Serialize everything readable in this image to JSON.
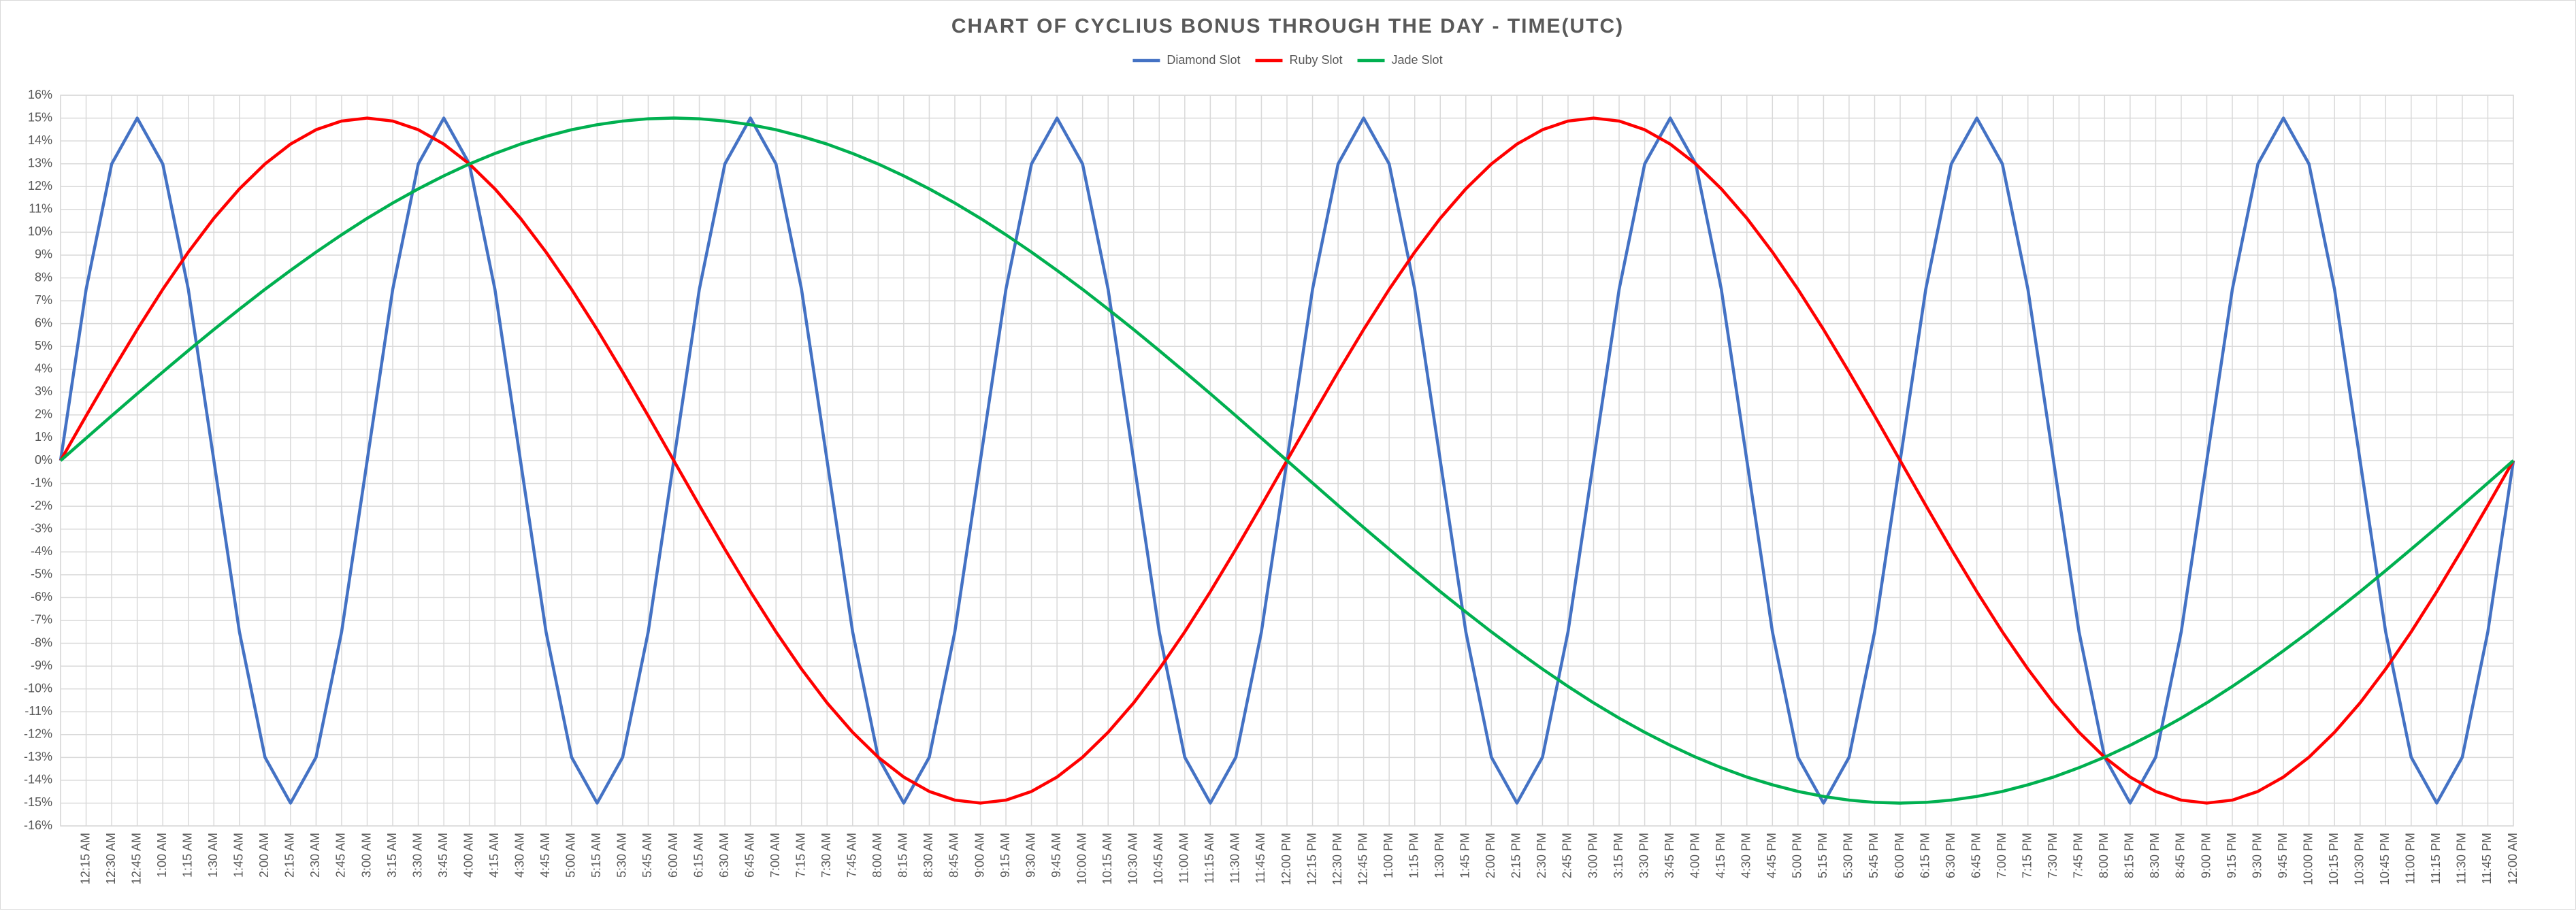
{
  "chart_data": {
    "type": "line",
    "title": "CHART OF CYCLIUS BONUS THROUGH THE DAY - TIME(UTC)",
    "legend": "top",
    "grid": true,
    "ylim": [
      -16,
      16
    ],
    "yticks": [
      {
        "value": -16,
        "label": "-16%"
      },
      {
        "value": -15,
        "label": "-15%"
      },
      {
        "value": -14,
        "label": "-14%"
      },
      {
        "value": -13,
        "label": "-13%"
      },
      {
        "value": -12,
        "label": "-12%"
      },
      {
        "value": -11,
        "label": "-11%"
      },
      {
        "value": -10,
        "label": "-10%"
      },
      {
        "value": -9,
        "label": "-9%"
      },
      {
        "value": -8,
        "label": "-8%"
      },
      {
        "value": -7,
        "label": "-7%"
      },
      {
        "value": -6,
        "label": "-6%"
      },
      {
        "value": -5,
        "label": "-5%"
      },
      {
        "value": -4,
        "label": "-4%"
      },
      {
        "value": -3,
        "label": "-3%"
      },
      {
        "value": -2,
        "label": "-2%"
      },
      {
        "value": -1,
        "label": "-1%"
      },
      {
        "value": 0,
        "label": "0%"
      },
      {
        "value": 1,
        "label": "1%"
      },
      {
        "value": 2,
        "label": "2%"
      },
      {
        "value": 3,
        "label": "3%"
      },
      {
        "value": 4,
        "label": "4%"
      },
      {
        "value": 5,
        "label": "5%"
      },
      {
        "value": 6,
        "label": "6%"
      },
      {
        "value": 7,
        "label": "7%"
      },
      {
        "value": 8,
        "label": "8%"
      },
      {
        "value": 9,
        "label": "9%"
      },
      {
        "value": 10,
        "label": "10%"
      },
      {
        "value": 11,
        "label": "11%"
      },
      {
        "value": 12,
        "label": "12%"
      },
      {
        "value": 13,
        "label": "13%"
      },
      {
        "value": 14,
        "label": "14%"
      },
      {
        "value": 15,
        "label": "15%"
      },
      {
        "value": 16,
        "label": "16%"
      }
    ],
    "categories": [
      null,
      "12:15 AM",
      "12:30 AM",
      "12:45 AM",
      "1:00 AM",
      "1:15 AM",
      "1:30 AM",
      "1:45 AM",
      "2:00 AM",
      "2:15 AM",
      "2:30 AM",
      "2:45 AM",
      "3:00 AM",
      "3:15 AM",
      "3:30 AM",
      "3:45 AM",
      "4:00 AM",
      "4:15 AM",
      "4:30 AM",
      "4:45 AM",
      "5:00 AM",
      "5:15 AM",
      "5:30 AM",
      "5:45 AM",
      "6:00 AM",
      "6:15 AM",
      "6:30 AM",
      "6:45 AM",
      "7:00 AM",
      "7:15 AM",
      "7:30 AM",
      "7:45 AM",
      "8:00 AM",
      "8:15 AM",
      "8:30 AM",
      "8:45 AM",
      "9:00 AM",
      "9:15 AM",
      "9:30 AM",
      "9:45 AM",
      "10:00 AM",
      "10:15 AM",
      "10:30 AM",
      "10:45 AM",
      "11:00 AM",
      "11:15 AM",
      "11:30 AM",
      "11:45 AM",
      "12:00 PM",
      "12:15 PM",
      "12:30 PM",
      "12:45 PM",
      "1:00 PM",
      "1:15 PM",
      "1:30 PM",
      "1:45 PM",
      "2:00 PM",
      "2:15 PM",
      "2:30 PM",
      "2:45 PM",
      "3:00 PM",
      "3:15 PM",
      "3:30 PM",
      "3:45 PM",
      "4:00 PM",
      "4:15 PM",
      "4:30 PM",
      "4:45 PM",
      "5:00 PM",
      "5:15 PM",
      "5:30 PM",
      "5:45 PM",
      "6:00 PM",
      "6:15 PM",
      "6:30 PM",
      "6:45 PM",
      "7:00 PM",
      "7:15 PM",
      "7:30 PM",
      "7:45 PM",
      "8:00 PM",
      "8:15 PM",
      "8:30 PM",
      "8:45 PM",
      "9:00 PM",
      "9:15 PM",
      "9:30 PM",
      "9:45 PM",
      "10:00 PM",
      "10:15 PM",
      "10:30 PM",
      "10:45 PM",
      "11:00 PM",
      "11:15 PM",
      "11:30 PM",
      "11:45 PM",
      "12:00 AM"
    ],
    "series": [
      {
        "name": "Diamond Slot",
        "color": "#4472c4",
        "values": [
          0,
          7.5,
          12.99,
          15,
          12.99,
          7.5,
          0,
          -7.5,
          -12.99,
          -15,
          -12.99,
          -7.5,
          0,
          7.5,
          12.99,
          15,
          12.99,
          7.5,
          0,
          -7.5,
          -12.99,
          -15,
          -12.99,
          -7.5,
          0,
          7.5,
          12.99,
          15,
          12.99,
          7.5,
          0,
          -7.5,
          -12.99,
          -15,
          -12.99,
          -7.5,
          0,
          7.5,
          12.99,
          15,
          12.99,
          7.5,
          0,
          -7.5,
          -12.99,
          -15,
          -12.99,
          -7.5,
          0,
          7.5,
          12.99,
          15,
          12.99,
          7.5,
          0,
          -7.5,
          -12.99,
          -15,
          -12.99,
          -7.5,
          0,
          7.5,
          12.99,
          15,
          12.99,
          7.5,
          0,
          -7.5,
          -12.99,
          -15,
          -12.99,
          -7.5,
          0,
          7.5,
          12.99,
          15,
          12.99,
          7.5,
          0,
          -7.5,
          -12.99,
          -15,
          -12.99,
          -7.5,
          0,
          7.5,
          12.99,
          15,
          12.99,
          7.5,
          0,
          -7.5,
          -12.99,
          -15,
          -12.99,
          -7.5,
          0
        ]
      },
      {
        "name": "Ruby Slot",
        "color": "#ff0000",
        "values": [
          0,
          1.96,
          3.88,
          5.74,
          7.5,
          9.13,
          10.61,
          11.9,
          12.99,
          13.86,
          14.49,
          14.87,
          15,
          14.87,
          14.49,
          13.86,
          12.99,
          11.9,
          10.61,
          9.13,
          7.5,
          5.74,
          3.88,
          1.96,
          0,
          -1.96,
          -3.88,
          -5.74,
          -7.5,
          -9.13,
          -10.61,
          -11.9,
          -12.99,
          -13.86,
          -14.49,
          -14.87,
          -15,
          -14.87,
          -14.49,
          -13.86,
          -12.99,
          -11.9,
          -10.61,
          -9.13,
          -7.5,
          -5.74,
          -3.88,
          -1.96,
          0,
          1.96,
          3.88,
          5.74,
          7.5,
          9.13,
          10.61,
          11.9,
          12.99,
          13.86,
          14.49,
          14.87,
          15,
          14.87,
          14.49,
          13.86,
          12.99,
          11.9,
          10.61,
          9.13,
          7.5,
          5.74,
          3.88,
          1.96,
          0,
          -1.96,
          -3.88,
          -5.74,
          -7.5,
          -9.13,
          -10.61,
          -11.9,
          -12.99,
          -13.86,
          -14.49,
          -14.87,
          -15,
          -14.87,
          -14.49,
          -13.86,
          -12.99,
          -11.9,
          -10.61,
          -9.13,
          -7.5,
          -5.74,
          -3.88,
          -1.96,
          0
        ]
      },
      {
        "name": "Jade Slot",
        "color": "#00b050",
        "values": [
          0,
          0.98,
          1.96,
          2.93,
          3.88,
          4.82,
          5.74,
          6.63,
          7.5,
          8.33,
          9.13,
          9.89,
          10.61,
          11.28,
          11.9,
          12.47,
          12.99,
          13.45,
          13.86,
          14.2,
          14.49,
          14.71,
          14.87,
          14.97,
          15,
          14.97,
          14.87,
          14.71,
          14.49,
          14.2,
          13.86,
          13.45,
          12.99,
          12.47,
          11.9,
          11.28,
          10.61,
          9.89,
          9.13,
          8.33,
          7.5,
          6.63,
          5.74,
          4.82,
          3.88,
          2.93,
          1.96,
          0.98,
          0,
          -0.98,
          -1.96,
          -2.93,
          -3.88,
          -4.82,
          -5.74,
          -6.63,
          -7.5,
          -8.33,
          -9.13,
          -9.89,
          -10.61,
          -11.28,
          -11.9,
          -12.47,
          -12.99,
          -13.45,
          -13.86,
          -14.2,
          -14.49,
          -14.71,
          -14.87,
          -14.97,
          -15,
          -14.97,
          -14.87,
          -14.71,
          -14.49,
          -14.2,
          -13.86,
          -13.45,
          -12.99,
          -12.47,
          -11.9,
          -11.28,
          -10.61,
          -9.89,
          -9.13,
          -8.33,
          -7.5,
          -6.63,
          -5.74,
          -4.82,
          -3.88,
          -2.93,
          -1.96,
          -0.98,
          0
        ]
      }
    ]
  }
}
